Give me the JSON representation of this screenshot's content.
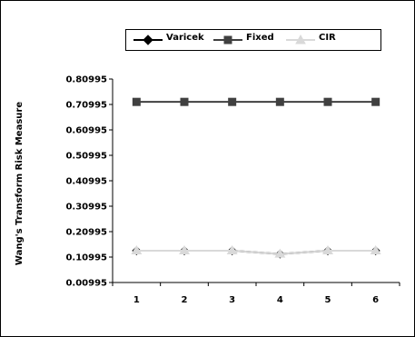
{
  "chart_data": {
    "type": "line",
    "title": "",
    "xlabel": "",
    "ylabel": "Wang's Transform Risk Measure",
    "categories": [
      "1",
      "2",
      "3",
      "4",
      "5",
      "6"
    ],
    "y_ticks": [
      "0.80995",
      "0.70995",
      "0.60995",
      "0.50995",
      "0.40995",
      "0.30995",
      "0.20995",
      "0.10995",
      "0.00995"
    ],
    "ylim": [
      0.00995,
      0.80995
    ],
    "grid": false,
    "legend_position": "top",
    "series": [
      {
        "name": "Varicek",
        "values": [
          0.135,
          0.135,
          0.135,
          0.122,
          0.135,
          0.135
        ],
        "color": "#000000",
        "marker": "diamond"
      },
      {
        "name": "Fixed",
        "values": [
          0.72,
          0.72,
          0.72,
          0.72,
          0.72,
          0.72
        ],
        "color": "#404040",
        "marker": "square"
      },
      {
        "name": "CIR",
        "values": [
          0.135,
          0.135,
          0.135,
          0.122,
          0.135,
          0.135
        ],
        "color": "#d9d9d9",
        "marker": "triangle"
      }
    ]
  }
}
